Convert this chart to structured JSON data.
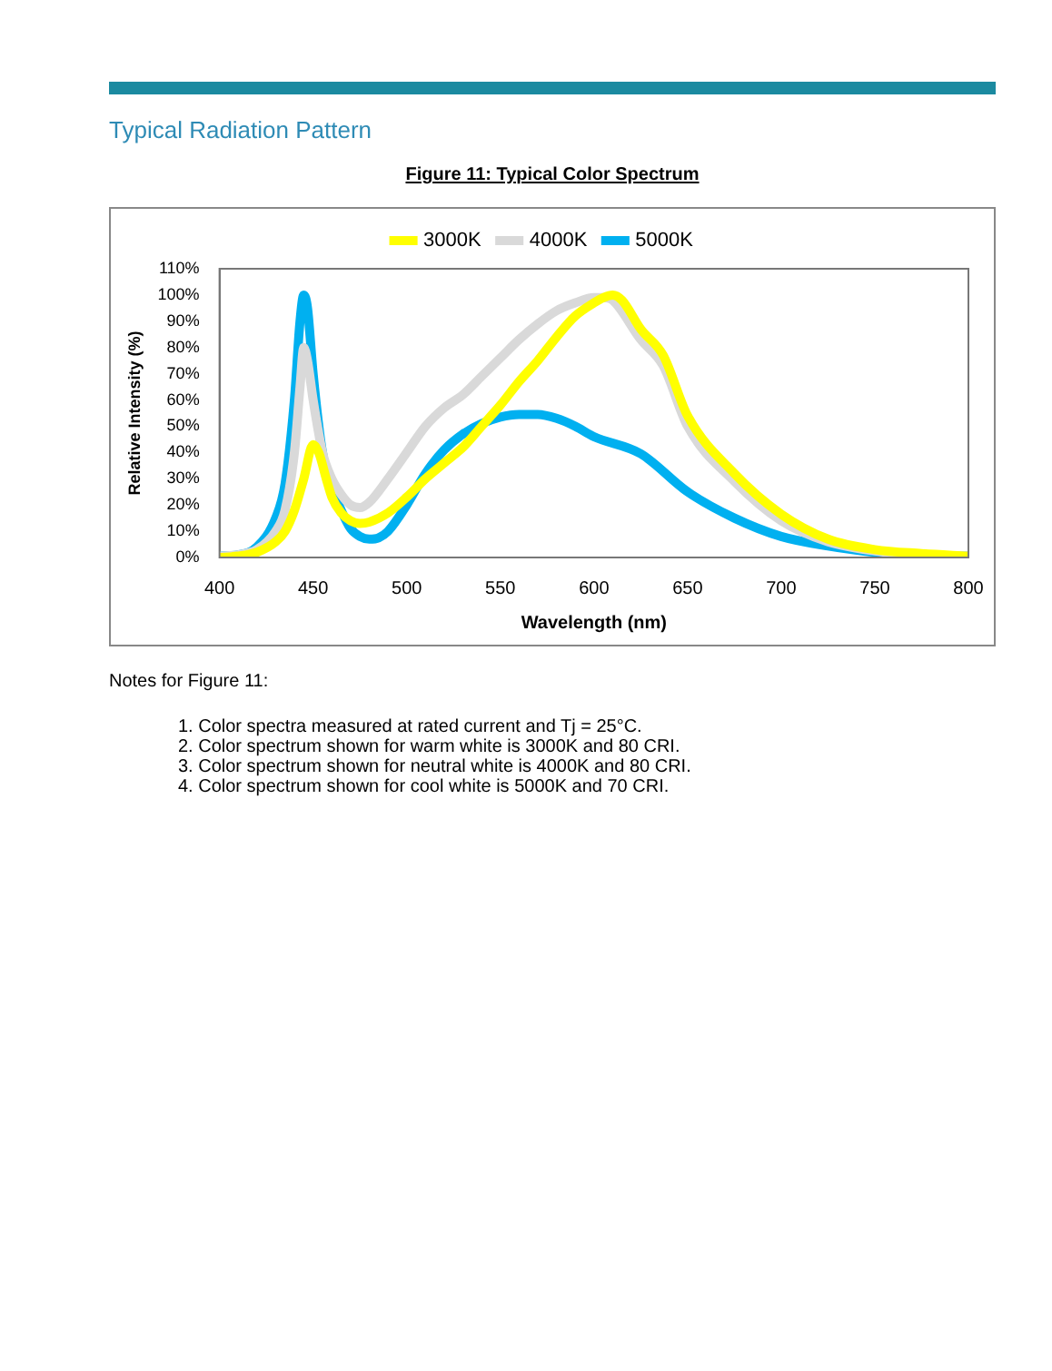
{
  "chart_data": {
    "type": "line",
    "title": "Figure 11: Typical Color Spectrum",
    "xlabel": "Wavelength (nm)",
    "ylabel": "Relative Intensity (%)",
    "annotations": [
      "Typical Radiation Pattern",
      "Notes for Figure 11:",
      "1. Color spectra measured at rated current and Tj = 25°C.",
      "2. Color spectrum shown for warm white is 3000K and 80 CRI.",
      "3. Color spectrum shown for neutral white is 4000K and 80 CRI.",
      "4. Color spectrum shown for cool white is 5000K and 70 CRI."
    ],
    "xlim": [
      400,
      800
    ],
    "xticks": [
      400,
      450,
      500,
      550,
      600,
      650,
      700,
      750,
      800
    ],
    "ylim": [
      0,
      110
    ],
    "yticks": [
      {
        "value": 0,
        "label": "0%"
      },
      {
        "value": 10,
        "label": "10%"
      },
      {
        "value": 20,
        "label": "20%"
      },
      {
        "value": 30,
        "label": "30%"
      },
      {
        "value": 40,
        "label": "40%"
      },
      {
        "value": 50,
        "label": "50%"
      },
      {
        "value": 60,
        "label": "60%"
      },
      {
        "value": 70,
        "label": "70%"
      },
      {
        "value": 80,
        "label": "80%"
      },
      {
        "value": 90,
        "label": "90%"
      },
      {
        "value": 100,
        "label": "100%"
      },
      {
        "value": 110,
        "label": "110%"
      }
    ],
    "grid": false,
    "legend": "top",
    "marker": "none",
    "line_style": "solid",
    "series": [
      {
        "name": "3000K",
        "color": "#ffff00",
        "x": [
          400,
          410,
          420,
          430,
          435,
          440,
          445,
          450,
          453,
          457,
          460,
          465,
          470,
          475,
          480,
          490,
          500,
          510,
          520,
          530,
          540,
          550,
          560,
          570,
          580,
          590,
          600,
          605,
          610,
          615,
          625,
          637,
          650,
          675,
          700,
          725,
          750,
          775,
          800
        ],
        "values": [
          0,
          0.5,
          2,
          6,
          10,
          18,
          30,
          43,
          40,
          30,
          23,
          17,
          14,
          13,
          13.5,
          17,
          23,
          30,
          36,
          42,
          50,
          58,
          67,
          75,
          84,
          92,
          97,
          99,
          100,
          98,
          87,
          77,
          54,
          32,
          16.5,
          7,
          3,
          1.5,
          0.5
        ]
      },
      {
        "name": "4000K",
        "color": "#d9d9d9",
        "x": [
          400,
          410,
          420,
          430,
          435,
          440,
          443,
          445,
          447,
          450,
          455,
          460,
          465,
          470,
          475,
          480,
          490,
          500,
          510,
          520,
          530,
          540,
          550,
          560,
          570,
          580,
          590,
          600,
          605,
          610,
          625,
          637,
          650,
          675,
          700,
          725,
          750,
          775,
          800
        ],
        "values": [
          0.5,
          1,
          3,
          10,
          18,
          40,
          65,
          80,
          75,
          60,
          40,
          30,
          24,
          20,
          19,
          21,
          30,
          40,
          50,
          57,
          62,
          69,
          76,
          83,
          89,
          94,
          97,
          99,
          99,
          98,
          83,
          73,
          50,
          29,
          14,
          6,
          2.5,
          1,
          0.5
        ]
      },
      {
        "name": "5000K",
        "color": "#00b0f0",
        "x": [
          400,
          410,
          420,
          430,
          435,
          440,
          443,
          445,
          447,
          450,
          455,
          460,
          465,
          470,
          475,
          480,
          485,
          490,
          500,
          510,
          520,
          530,
          540,
          550,
          560,
          570,
          580,
          590,
          600,
          625,
          650,
          675,
          700,
          725,
          750,
          775,
          800
        ],
        "values": [
          0.5,
          1,
          4,
          15,
          28,
          60,
          90,
          100,
          95,
          70,
          40,
          27,
          18,
          11,
          8,
          7,
          7.5,
          10,
          20,
          32,
          41,
          47,
          51,
          53.5,
          54.5,
          54.5,
          53,
          50,
          46,
          39.5,
          25,
          15,
          8,
          4.4,
          2,
          1,
          0.5
        ]
      }
    ]
  }
}
